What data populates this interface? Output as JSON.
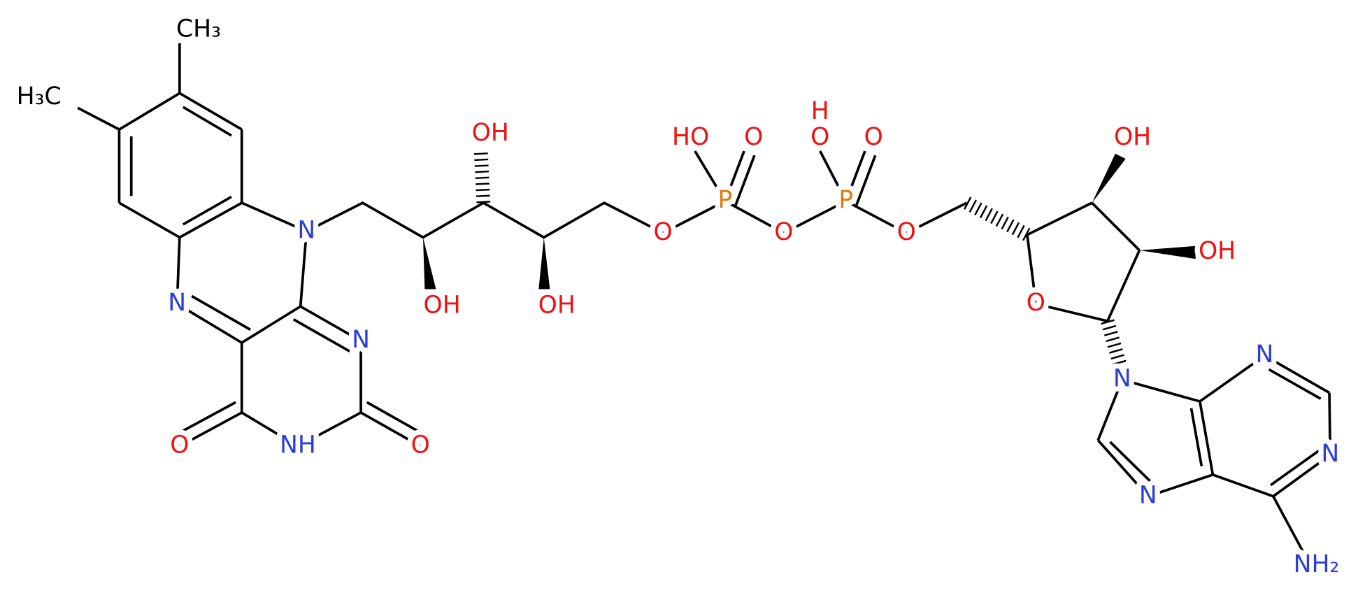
{
  "atoms": [
    "CH₃",
    "H₃C",
    "N",
    "N",
    "N",
    "NH",
    "O",
    "O",
    "OH",
    "OH",
    "OH",
    "HO",
    "O",
    "P",
    "H",
    "O",
    "O",
    "P",
    "O",
    "O",
    "O",
    "O",
    "OH",
    "OH",
    "N",
    "N",
    "N",
    "N",
    "NH₂"
  ]
}
